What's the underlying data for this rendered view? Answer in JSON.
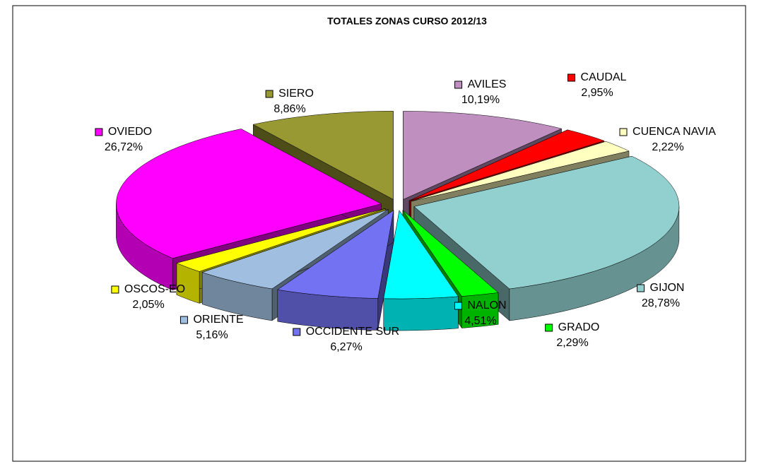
{
  "chart_data": {
    "type": "pie3d",
    "title": "TOTALES ZONAS CURSO 2012/13",
    "categories": [
      "AVILES",
      "CAUDAL",
      "CUENCA NAVIA",
      "GIJON",
      "GRADO",
      "NALON",
      "OCCIDENTE SUR",
      "ORIENTE",
      "OSCOS-EO",
      "OVIEDO",
      "SIERO"
    ],
    "values": [
      10.19,
      2.95,
      2.22,
      28.78,
      2.29,
      4.51,
      6.27,
      5.16,
      2.05,
      26.72,
      8.86
    ],
    "value_labels": [
      "10,19%",
      "2,95%",
      "2,22%",
      "28,78%",
      "2,29%",
      "4,51%",
      "6,27%",
      "5,16%",
      "2,05%",
      "26,72%",
      "8,86%"
    ],
    "colors": [
      "#bf8fbf",
      "#ff0000",
      "#ffffc0",
      "#92d0d0",
      "#00ff00",
      "#00ffff",
      "#7272f2",
      "#a0bfe0",
      "#ffff00",
      "#ff00ff",
      "#999933"
    ]
  }
}
